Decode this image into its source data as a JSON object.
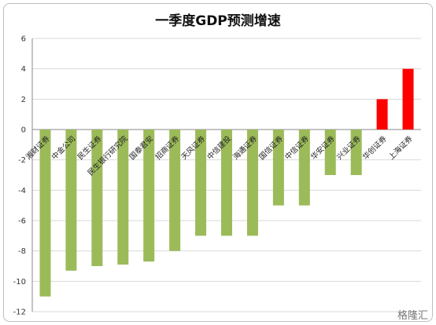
{
  "chart_data": {
    "type": "bar",
    "title": "一季度GDP预测增速",
    "categories": [
      "湘财证券",
      "中金公司",
      "民生证券",
      "民生银行研究院",
      "国泰君安",
      "招商证券",
      "天风证券",
      "中信建投",
      "海通证券",
      "国信证券",
      "中信证券",
      "华安证券",
      "兴业证券",
      "华创证券",
      "上海证券"
    ],
    "values": [
      -11,
      -9.3,
      -9,
      -8.9,
      -8.7,
      -8,
      -7,
      -7,
      -7,
      -5,
      -5,
      -3,
      -3,
      2,
      4
    ],
    "ylim": [
      -12,
      6
    ],
    "yticks": [
      -12,
      -10,
      -8,
      -6,
      -4,
      -2,
      0,
      2,
      4,
      6
    ],
    "xlabel": "",
    "ylabel": "",
    "grid": true,
    "colors": {
      "negative": "#9bbb59",
      "positive": "#ff0000"
    }
  },
  "watermark": "格隆汇"
}
